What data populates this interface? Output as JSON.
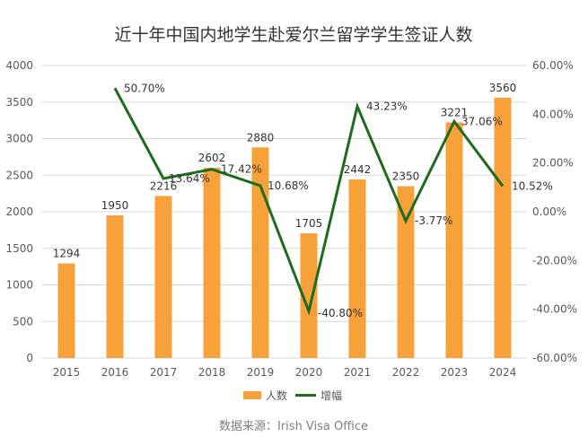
{
  "chart_data": {
    "type": "bar",
    "title": "近十年中国内地学生赴爱尔兰留学学生签证人数",
    "source": "数据来源：Irish Visa Office",
    "categories": [
      "2015",
      "2016",
      "2017",
      "2018",
      "2019",
      "2020",
      "2021",
      "2022",
      "2023",
      "2024"
    ],
    "series": [
      {
        "name": "人数",
        "type": "bar",
        "axis": "left",
        "color": "#F7A13A",
        "values": [
          1294,
          1950,
          2216,
          2602,
          2880,
          1705,
          2442,
          2350,
          3221,
          3560
        ],
        "labels": [
          "1294",
          "1950",
          "2216",
          "2602",
          "2880",
          "1705",
          "2442",
          "2350",
          "3221",
          "3560"
        ]
      },
      {
        "name": "增幅",
        "type": "line",
        "axis": "right",
        "color": "#1E6B1E",
        "values": [
          null,
          50.7,
          13.64,
          17.42,
          10.68,
          -40.8,
          43.23,
          -3.77,
          37.06,
          10.52
        ],
        "labels": [
          "",
          "50.70%",
          "13.64%",
          "17.42%",
          "10.68%",
          "-40.80%",
          "43.23%",
          "-3.77%",
          "37.06%",
          "10.52%"
        ]
      }
    ],
    "y_left": {
      "range": [
        0,
        4000
      ],
      "ticks": [
        0,
        500,
        1000,
        1500,
        2000,
        2500,
        3000,
        3500,
        4000
      ],
      "tick_labels": [
        "0",
        "500",
        "1000",
        "1500",
        "2000",
        "2500",
        "3000",
        "3500",
        "4000"
      ]
    },
    "y_right": {
      "range": [
        -60,
        60
      ],
      "ticks": [
        -60,
        -40,
        -20,
        0,
        20,
        40,
        60
      ],
      "tick_labels": [
        "-60.00%",
        "-40.00%",
        "-20.00%",
        "0.00%",
        "20.00%",
        "40.00%",
        "60.00%"
      ]
    },
    "grid": true,
    "gridline_color": "#D9D9D9",
    "legend": "bottom",
    "legend_entries": [
      "人数",
      "增幅"
    ]
  }
}
